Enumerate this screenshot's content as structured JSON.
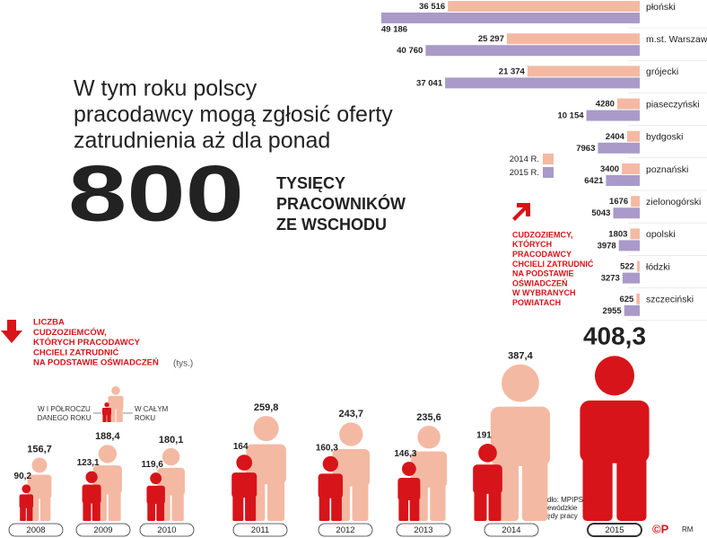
{
  "headline": [
    "W tym roku polscy",
    "pracodawcy mogą zgłosić oferty",
    "zatrudnienia aż dla ponad"
  ],
  "big_number": 800,
  "big_number_caption": [
    "TYSIĘCY",
    "PRACOWNIKÓW",
    "ZE WSCHODU"
  ],
  "chart_data": [
    {
      "type": "hbar",
      "title": [
        "CUDZOZIEMCY,",
        "KTÓRYCH",
        "PRACODAWCY",
        "CHCIELI ZATRUDNIĆ",
        "NA PODSTAWIE",
        "OŚWIADCZEŃ",
        "W WYBRANYCH",
        "POWIATACH"
      ],
      "categories": [
        "płoński",
        "m.st. Warszawa",
        "grójecki",
        "piaseczyński",
        "bydgoski",
        "poznański",
        "zielonogórski",
        "opolski",
        "łódzki",
        "szczeciński"
      ],
      "series": [
        {
          "name": "2014 R.",
          "color": "#f4b9a3",
          "values": [
            36516,
            25297,
            21374,
            4280,
            2404,
            3400,
            1676,
            1803,
            522,
            625
          ],
          "value_labels": [
            "36 516",
            "25 297",
            "21 374",
            "4280",
            "2404",
            "3400",
            "1676",
            "1803",
            "522",
            "625"
          ]
        },
        {
          "name": "2015 R.",
          "color": "#a99ac9",
          "values": [
            49186,
            40760,
            37041,
            10154,
            7963,
            6421,
            5043,
            3978,
            3273,
            2955
          ],
          "value_labels": [
            "49 186",
            "40 760",
            "37 041",
            "10 154",
            "7963",
            "6421",
            "5043",
            "3978",
            "3273",
            "2955"
          ]
        }
      ]
    },
    {
      "type": "pictogram",
      "title": [
        "LICZBA",
        "CUDZOZIEMCÓW,",
        "KTÓRYCH PRACODAWCY",
        "CHCIELI ZATRUDNIĆ",
        "NA PODSTAWIE OŚWIADCZEŃ"
      ],
      "unit": "(tys.)",
      "categories": [
        "2008",
        "2009",
        "2010",
        "2011",
        "2012",
        "2013",
        "2014",
        "2015"
      ],
      "series": [
        {
          "name": "W I PÓŁROCZU DANEGO ROKU",
          "color": "#d7141a",
          "values": [
            90.2,
            123.1,
            119.6,
            164,
            160.3,
            146.3,
            191,
            null
          ],
          "value_labels": [
            "90,2",
            "123,1",
            "119,6",
            "164",
            "160,3",
            "146,3",
            "191",
            null
          ]
        },
        {
          "name": "W CAŁYM ROKU",
          "color": "#f4b9a3",
          "values": [
            156.7,
            188.4,
            180.1,
            259.8,
            243.7,
            235.6,
            387.4,
            408.3
          ],
          "value_labels": [
            "156,7",
            "188,4",
            "180,1",
            "259,8",
            "243,7",
            "235,6",
            "387,4",
            "408,3"
          ]
        }
      ],
      "highlight_color": "#d7141a"
    }
  ],
  "source": [
    "Źródło: MPIPS,",
    "wojewódzkie",
    "urzędy pracy"
  ],
  "logo": "©P",
  "author": "RM"
}
